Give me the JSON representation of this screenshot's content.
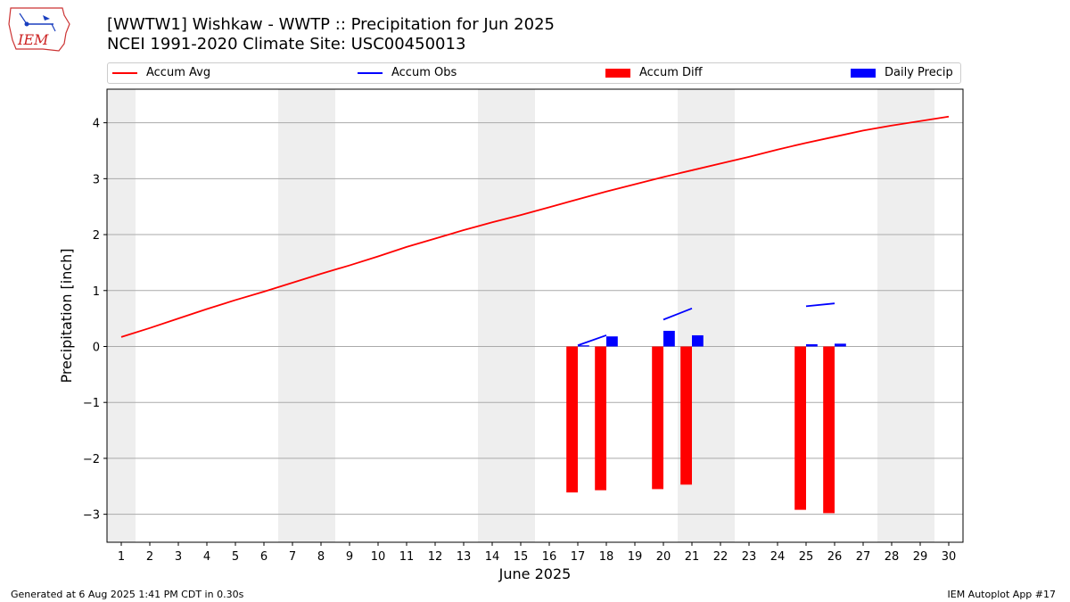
{
  "title_line1": "[WWTW1] Wishkaw - WWTP :: Precipitation for Jun 2025",
  "title_line2": "NCEI 1991-2020 Climate Site: USC00450013",
  "logo_text": "IEM",
  "legend": {
    "accum_avg": "Accum Avg",
    "accum_obs": "Accum Obs",
    "accum_diff": "Accum Diff",
    "daily_precip": "Daily Precip"
  },
  "footer": {
    "left": "Generated at 6 Aug 2025 1:41 PM CDT in 0.30s",
    "right": "IEM Autoplot App #17"
  },
  "colors": {
    "accum_avg": "#ff0000",
    "accum_obs": "#0000ff",
    "accum_diff": "#ff0000",
    "daily_precip": "#0000ff",
    "weekend_shade": "#eeeeee",
    "grid": "#aaaaaa"
  },
  "chart_data": {
    "type": "bar",
    "xlabel": "June 2025",
    "ylabel": "Precipitation [inch]",
    "xlim": [
      0.5,
      30.5
    ],
    "ylim": [
      -3.5,
      4.6
    ],
    "yticks": [
      -3,
      -2,
      -1,
      0,
      1,
      2,
      3,
      4
    ],
    "xticks": [
      1,
      2,
      3,
      4,
      5,
      6,
      7,
      8,
      9,
      10,
      11,
      12,
      13,
      14,
      15,
      16,
      17,
      18,
      19,
      20,
      21,
      22,
      23,
      24,
      25,
      26,
      27,
      28,
      29,
      30
    ],
    "grid": "horizontal",
    "legend_position": "top",
    "weekend_days": [
      1,
      7,
      8,
      14,
      15,
      21,
      22,
      28,
      29
    ],
    "accum_avg": {
      "days": [
        1,
        2,
        3,
        4,
        5,
        6,
        7,
        8,
        9,
        10,
        11,
        12,
        13,
        14,
        15,
        16,
        17,
        18,
        19,
        20,
        21,
        22,
        23,
        24,
        25,
        26,
        27,
        28,
        29,
        30
      ],
      "values": [
        0.17,
        0.33,
        0.5,
        0.67,
        0.83,
        0.98,
        1.14,
        1.3,
        1.45,
        1.61,
        1.78,
        1.93,
        2.08,
        2.22,
        2.35,
        2.49,
        2.63,
        2.77,
        2.9,
        3.03,
        3.15,
        3.27,
        3.39,
        3.52,
        3.64,
        3.75,
        3.86,
        3.95,
        4.03,
        4.11
      ]
    },
    "accum_obs": [
      {
        "days": [
          17,
          18
        ],
        "values": [
          0.02,
          0.2
        ]
      },
      {
        "days": [
          20,
          21
        ],
        "values": [
          0.48,
          0.68
        ]
      },
      {
        "days": [
          25,
          26
        ],
        "values": [
          0.72,
          0.77
        ]
      }
    ],
    "accum_diff": {
      "days": [
        17,
        18,
        20,
        21,
        25,
        26
      ],
      "values": [
        -2.61,
        -2.57,
        -2.55,
        -2.47,
        -2.92,
        -2.98
      ]
    },
    "daily_precip": {
      "days": [
        17,
        18,
        20,
        21,
        25,
        26
      ],
      "values": [
        0.02,
        0.18,
        0.28,
        0.2,
        0.04,
        0.05
      ]
    }
  }
}
